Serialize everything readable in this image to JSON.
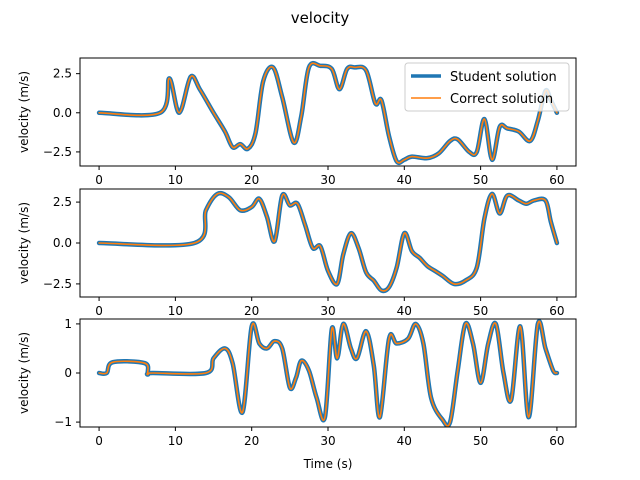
{
  "title": "velocity",
  "xlabel": "Time (s)",
  "colors": {
    "student": "#1f77b4",
    "correct": "#ff7f0e",
    "axes": "#000000"
  },
  "legend": {
    "placement": "upper-right of top panel",
    "entries": [
      "Student solution",
      "Correct solution"
    ]
  },
  "chart_data": [
    {
      "type": "line",
      "ylabel": "velocity (m/s)",
      "xlim": [
        -2.5,
        62.5
      ],
      "ylim": [
        -3.4,
        3.5
      ],
      "xticks": [
        0,
        10,
        20,
        30,
        40,
        50,
        60
      ],
      "yticks": [
        2.5,
        0.0,
        -2.5
      ],
      "ytick_labels": [
        "2.5",
        "0.0",
        "−2.5"
      ],
      "series": [
        {
          "name": "Student solution",
          "x": [
            0,
            8,
            9.2,
            10.5,
            12,
            13.2,
            15,
            16.5,
            17.5,
            18.5,
            19.5,
            20.5,
            21.5,
            22.8,
            24,
            25.5,
            26.5,
            27.5,
            29,
            30.5,
            31.5,
            32.5,
            33.5,
            35,
            36.2,
            37,
            38,
            39,
            40,
            41,
            43,
            44.5,
            46,
            47,
            48.5,
            49.5,
            50.5,
            51.5,
            52.5,
            53.5,
            55,
            56.5,
            57.5,
            58.5,
            59.2,
            60
          ],
          "y": [
            0,
            0,
            2.2,
            0,
            2.3,
            1.5,
            0,
            -1.2,
            -2.2,
            -2,
            -2.3,
            -1.3,
            2,
            2.9,
            1,
            -1.9,
            -0.2,
            2.9,
            3,
            2.8,
            1.5,
            2.8,
            2.9,
            2.7,
            0.6,
            0.8,
            -1.5,
            -3.1,
            -3,
            -2.8,
            -2.9,
            -2.6,
            -1.8,
            -1.7,
            -2.5,
            -2.5,
            -0.4,
            -3,
            -0.9,
            -1,
            -1.2,
            -1.8,
            -0.5,
            1.4,
            0.8,
            0
          ]
        },
        {
          "name": "Correct solution",
          "x": [
            0,
            8,
            9.2,
            10.5,
            12,
            13.2,
            15,
            16.5,
            17.5,
            18.5,
            19.5,
            20.5,
            21.5,
            22.8,
            24,
            25.5,
            26.5,
            27.5,
            29,
            30.5,
            31.5,
            32.5,
            33.5,
            35,
            36.2,
            37,
            38,
            39,
            40,
            41,
            43,
            44.5,
            46,
            47,
            48.5,
            49.5,
            50.5,
            51.5,
            52.5,
            53.5,
            55,
            56.5,
            57.5,
            58.5,
            59.2,
            60
          ],
          "y": [
            0,
            0,
            2.2,
            0,
            2.3,
            1.5,
            0,
            -1.2,
            -2.2,
            -2,
            -2.3,
            -1.3,
            2,
            2.9,
            1,
            -1.9,
            -0.2,
            2.9,
            3,
            2.8,
            1.5,
            2.8,
            2.9,
            2.7,
            0.6,
            0.8,
            -1.5,
            -3.1,
            -3,
            -2.8,
            -2.9,
            -2.6,
            -1.8,
            -1.7,
            -2.5,
            -2.5,
            -0.4,
            -3,
            -0.9,
            -1,
            -1.2,
            -1.8,
            -0.5,
            1.4,
            0.8,
            0
          ]
        }
      ]
    },
    {
      "type": "line",
      "ylabel": "velocity (m/s)",
      "xlim": [
        -2.5,
        62.5
      ],
      "ylim": [
        -3.3,
        3.3
      ],
      "xticks": [
        0,
        10,
        20,
        30,
        40,
        50,
        60
      ],
      "yticks": [
        2.5,
        0.0,
        -2.5
      ],
      "ytick_labels": [
        "2.5",
        "0.0",
        "−2.5"
      ],
      "series": [
        {
          "name": "Student solution",
          "x": [
            0,
            12.5,
            14,
            15.5,
            17,
            18.5,
            20,
            21,
            22,
            23,
            24,
            25,
            26,
            27,
            28,
            29,
            30,
            31.2,
            32,
            33,
            34,
            35,
            36,
            37,
            38,
            39,
            40,
            41,
            42,
            43,
            44,
            45,
            46.5,
            48,
            49.5,
            50.5,
            51.5,
            52.5,
            53.5,
            55,
            56,
            57,
            58.5,
            59.2,
            60
          ],
          "y": [
            0,
            0,
            2,
            3,
            2.8,
            2,
            2.2,
            2.7,
            1.6,
            0.1,
            2.9,
            2.3,
            2.4,
            1.1,
            -0.3,
            -0.2,
            -1.7,
            -2.5,
            -0.7,
            0.6,
            -0.3,
            -1.8,
            -2.3,
            -2.9,
            -2.7,
            -1.5,
            0.6,
            -0.5,
            -0.9,
            -1.4,
            -1.7,
            -2,
            -2.5,
            -2.3,
            -1.5,
            1.5,
            3,
            1.8,
            2.9,
            2.6,
            2.4,
            2.6,
            2.6,
            1.3,
            0
          ]
        },
        {
          "name": "Correct solution",
          "x": [
            0,
            12.5,
            14,
            15.5,
            17,
            18.5,
            20,
            21,
            22,
            23,
            24,
            25,
            26,
            27,
            28,
            29,
            30,
            31.2,
            32,
            33,
            34,
            35,
            36,
            37,
            38,
            39,
            40,
            41,
            42,
            43,
            44,
            45,
            46.5,
            48,
            49.5,
            50.5,
            51.5,
            52.5,
            53.5,
            55,
            56,
            57,
            58.5,
            59.2,
            60
          ],
          "y": [
            0,
            0,
            2,
            3,
            2.8,
            2,
            2.2,
            2.7,
            1.6,
            0.1,
            2.9,
            2.3,
            2.4,
            1.1,
            -0.3,
            -0.2,
            -1.7,
            -2.5,
            -0.7,
            0.6,
            -0.3,
            -1.8,
            -2.3,
            -2.9,
            -2.7,
            -1.5,
            0.6,
            -0.5,
            -0.9,
            -1.4,
            -1.7,
            -2,
            -2.5,
            -2.3,
            -1.5,
            1.5,
            3,
            1.8,
            2.9,
            2.6,
            2.4,
            2.6,
            2.6,
            1.3,
            0
          ]
        }
      ]
    },
    {
      "type": "line",
      "ylabel": "velocity (m/s)",
      "xlim": [
        -2.5,
        62.5
      ],
      "ylim": [
        -1.1,
        1.1
      ],
      "xticks": [
        0,
        10,
        20,
        30,
        40,
        50,
        60
      ],
      "yticks": [
        1,
        0,
        -1
      ],
      "ytick_labels": [
        "1",
        "0",
        "−1"
      ],
      "series": [
        {
          "name": "Student solution",
          "x": [
            0,
            1,
            1.8,
            6,
            6.4,
            7,
            14,
            15,
            16.5,
            17.5,
            18.8,
            20,
            21,
            22,
            23,
            24,
            25,
            25.8,
            26.5,
            27.5,
            28.5,
            29.6,
            30.5,
            31.2,
            32,
            33,
            33.8,
            35,
            36,
            36.8,
            38,
            39,
            40.5,
            41.5,
            42.5,
            43.5,
            45,
            46,
            47,
            48,
            49,
            50,
            51,
            52,
            53,
            54,
            55.2,
            56.3,
            57.5,
            58.5,
            59.5,
            60
          ],
          "y": [
            0,
            0,
            0.22,
            0.2,
            -0.02,
            0,
            0,
            0.3,
            0.5,
            0.2,
            -0.8,
            0.95,
            0.6,
            0.5,
            0.65,
            0.5,
            -0.3,
            -0.1,
            0.25,
            0.05,
            -0.5,
            -0.9,
            0.9,
            0.3,
            1,
            0.5,
            0.3,
            0.85,
            0.15,
            -0.9,
            0.7,
            0.6,
            0.7,
            1,
            0.6,
            -0.5,
            -0.95,
            -1,
            0.05,
            1,
            0.6,
            -0.2,
            0.6,
            1,
            0,
            -0.55,
            0.95,
            -0.9,
            1,
            0.5,
            0.05,
            0
          ]
        },
        {
          "name": "Correct solution",
          "x": [
            0,
            1,
            1.8,
            6,
            6.4,
            7,
            14,
            15,
            16.5,
            17.5,
            18.8,
            20,
            21,
            22,
            23,
            24,
            25,
            25.8,
            26.5,
            27.5,
            28.5,
            29.6,
            30.5,
            31.2,
            32,
            33,
            33.8,
            35,
            36,
            36.8,
            38,
            39,
            40.5,
            41.5,
            42.5,
            43.5,
            45,
            46,
            47,
            48,
            49,
            50,
            51,
            52,
            53,
            54,
            55.2,
            56.3,
            57.5,
            58.5,
            59.5,
            60
          ],
          "y": [
            0,
            0,
            0.22,
            0.2,
            -0.02,
            0,
            0,
            0.3,
            0.5,
            0.2,
            -0.8,
            0.95,
            0.6,
            0.5,
            0.65,
            0.5,
            -0.3,
            -0.1,
            0.25,
            0.05,
            -0.5,
            -0.9,
            0.9,
            0.3,
            1,
            0.5,
            0.3,
            0.85,
            0.15,
            -0.9,
            0.7,
            0.6,
            0.7,
            1,
            0.6,
            -0.5,
            -0.95,
            -1,
            0.05,
            1,
            0.6,
            -0.2,
            0.6,
            1,
            0,
            -0.55,
            0.95,
            -0.9,
            1,
            0.5,
            0.05,
            0
          ]
        }
      ]
    }
  ]
}
